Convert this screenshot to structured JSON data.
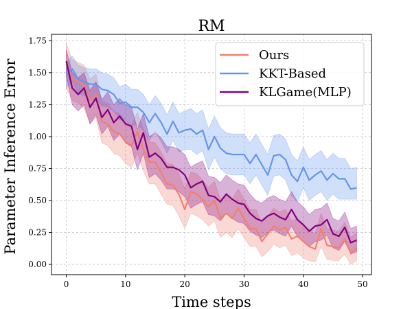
{
  "chart_data": {
    "type": "line",
    "title": "RM",
    "xlabel": "Time steps",
    "ylabel": "Parameter Inference Error",
    "xlim": [
      -2.5,
      51.5
    ],
    "ylim": [
      -0.08,
      1.8
    ],
    "x_ticks": [
      0,
      10,
      20,
      30,
      40,
      50
    ],
    "y_ticks": [
      0.0,
      0.25,
      0.5,
      0.75,
      1.0,
      1.25,
      1.5,
      1.75
    ],
    "x_tick_labels": [
      "0",
      "10",
      "20",
      "30",
      "40",
      "50"
    ],
    "y_tick_labels": [
      "0.00",
      "0.25",
      "0.50",
      "0.75",
      "1.00",
      "1.25",
      "1.50",
      "1.75"
    ],
    "grid": true,
    "legend_position": "top-right",
    "x": [
      0,
      1,
      2,
      3,
      4,
      5,
      6,
      7,
      8,
      9,
      10,
      11,
      12,
      13,
      14,
      15,
      16,
      17,
      18,
      19,
      20,
      21,
      22,
      23,
      24,
      25,
      26,
      27,
      28,
      29,
      30,
      31,
      32,
      33,
      34,
      35,
      36,
      37,
      38,
      39,
      40,
      41,
      42,
      43,
      44,
      45,
      46,
      47,
      48,
      49
    ],
    "series": [
      {
        "name": "Ours",
        "color": "#f08070",
        "values": [
          1.57,
          1.45,
          1.43,
          1.4,
          1.28,
          1.33,
          1.12,
          1.1,
          1.04,
          1.02,
          0.96,
          0.93,
          1.04,
          0.9,
          0.8,
          0.8,
          0.72,
          0.63,
          0.62,
          0.55,
          0.43,
          0.57,
          0.55,
          0.51,
          0.45,
          0.5,
          0.36,
          0.4,
          0.36,
          0.44,
          0.36,
          0.28,
          0.28,
          0.18,
          0.24,
          0.3,
          0.27,
          0.29,
          0.2,
          0.22,
          0.18,
          0.14,
          0.12,
          0.28,
          0.15,
          0.14,
          0.13,
          0.2,
          0.09,
          0.13
        ],
        "lower": [
          1.38,
          1.28,
          1.26,
          1.22,
          1.1,
          1.15,
          0.95,
          0.93,
          0.87,
          0.85,
          0.79,
          0.76,
          0.87,
          0.73,
          0.63,
          0.63,
          0.55,
          0.47,
          0.46,
          0.38,
          0.28,
          0.4,
          0.38,
          0.35,
          0.3,
          0.34,
          0.21,
          0.25,
          0.21,
          0.28,
          0.21,
          0.14,
          0.14,
          0.06,
          0.1,
          0.16,
          0.13,
          0.15,
          0.07,
          0.09,
          0.05,
          0.03,
          0.02,
          0.14,
          0.04,
          0.03,
          0.03,
          0.08,
          0.0,
          0.03
        ],
        "upper": [
          1.73,
          1.6,
          1.58,
          1.56,
          1.45,
          1.49,
          1.28,
          1.26,
          1.2,
          1.18,
          1.12,
          1.09,
          1.19,
          1.06,
          0.96,
          0.95,
          0.88,
          0.79,
          0.78,
          0.71,
          0.59,
          0.72,
          0.71,
          0.66,
          0.6,
          0.65,
          0.51,
          0.55,
          0.51,
          0.59,
          0.51,
          0.43,
          0.43,
          0.32,
          0.38,
          0.44,
          0.41,
          0.43,
          0.34,
          0.36,
          0.31,
          0.27,
          0.24,
          0.4,
          0.28,
          0.27,
          0.26,
          0.33,
          0.21,
          0.25
        ]
      },
      {
        "name": "KKT-Based",
        "color": "#6495ed",
        "values": [
          1.48,
          1.53,
          1.45,
          1.43,
          1.41,
          1.41,
          1.37,
          1.36,
          1.33,
          1.26,
          1.27,
          1.23,
          1.23,
          1.19,
          1.11,
          1.18,
          1.11,
          1.02,
          1.12,
          1.03,
          1.05,
          1.06,
          1.02,
          1.05,
          0.9,
          1.0,
          0.91,
          0.87,
          0.86,
          0.86,
          0.86,
          0.79,
          0.86,
          0.78,
          0.7,
          0.85,
          0.86,
          0.82,
          0.7,
          0.65,
          0.76,
          0.66,
          0.7,
          0.73,
          0.66,
          0.71,
          0.67,
          0.67,
          0.59,
          0.6
        ],
        "lower": [
          1.38,
          1.43,
          1.34,
          1.32,
          1.29,
          1.29,
          1.24,
          1.23,
          1.2,
          1.13,
          1.13,
          1.09,
          1.09,
          1.05,
          0.97,
          1.04,
          0.96,
          0.87,
          0.97,
          0.88,
          0.9,
          0.9,
          0.86,
          0.89,
          0.74,
          0.84,
          0.75,
          0.71,
          0.7,
          0.7,
          0.7,
          0.63,
          0.7,
          0.62,
          0.54,
          0.69,
          0.7,
          0.66,
          0.54,
          0.49,
          0.6,
          0.5,
          0.54,
          0.57,
          0.5,
          0.55,
          0.51,
          0.51,
          0.51,
          0.51
        ],
        "upper": [
          1.58,
          1.63,
          1.56,
          1.54,
          1.53,
          1.53,
          1.5,
          1.49,
          1.46,
          1.39,
          1.41,
          1.37,
          1.37,
          1.33,
          1.25,
          1.32,
          1.26,
          1.17,
          1.27,
          1.18,
          1.2,
          1.22,
          1.18,
          1.21,
          1.06,
          1.16,
          1.07,
          1.03,
          1.02,
          1.02,
          1.02,
          0.95,
          1.02,
          0.94,
          0.86,
          1.01,
          1.02,
          0.98,
          0.86,
          0.81,
          0.92,
          0.82,
          0.86,
          0.89,
          0.82,
          0.87,
          0.83,
          0.83,
          0.75,
          0.76
        ]
      },
      {
        "name": "KLGame(MLP)",
        "color": "#800080",
        "values": [
          1.59,
          1.38,
          1.33,
          1.38,
          1.23,
          1.3,
          1.15,
          1.21,
          1.11,
          1.16,
          1.1,
          1.08,
          0.9,
          1.03,
          0.84,
          0.87,
          0.83,
          0.76,
          0.76,
          0.74,
          0.7,
          0.6,
          0.63,
          0.65,
          0.54,
          0.53,
          0.49,
          0.55,
          0.51,
          0.48,
          0.47,
          0.4,
          0.36,
          0.34,
          0.38,
          0.4,
          0.37,
          0.35,
          0.43,
          0.35,
          0.31,
          0.26,
          0.3,
          0.31,
          0.35,
          0.24,
          0.22,
          0.29,
          0.17,
          0.19
        ],
        "lower": [
          1.48,
          1.25,
          1.2,
          1.25,
          1.1,
          1.17,
          1.02,
          1.08,
          0.97,
          1.02,
          0.95,
          0.92,
          0.74,
          0.87,
          0.68,
          0.71,
          0.66,
          0.59,
          0.59,
          0.57,
          0.53,
          0.44,
          0.47,
          0.49,
          0.39,
          0.38,
          0.34,
          0.4,
          0.36,
          0.33,
          0.32,
          0.26,
          0.23,
          0.21,
          0.25,
          0.27,
          0.24,
          0.22,
          0.3,
          0.22,
          0.18,
          0.14,
          0.18,
          0.19,
          0.23,
          0.13,
          0.11,
          0.18,
          0.08,
          0.1
        ],
        "upper": [
          1.68,
          1.5,
          1.46,
          1.5,
          1.36,
          1.43,
          1.29,
          1.35,
          1.25,
          1.3,
          1.25,
          1.23,
          1.06,
          1.18,
          1.0,
          1.03,
          0.99,
          0.92,
          0.92,
          0.9,
          0.86,
          0.76,
          0.79,
          0.81,
          0.69,
          0.68,
          0.64,
          0.7,
          0.66,
          0.63,
          0.62,
          0.55,
          0.5,
          0.48,
          0.52,
          0.54,
          0.51,
          0.49,
          0.57,
          0.49,
          0.45,
          0.39,
          0.43,
          0.44,
          0.48,
          0.36,
          0.34,
          0.41,
          0.28,
          0.3
        ]
      }
    ]
  }
}
